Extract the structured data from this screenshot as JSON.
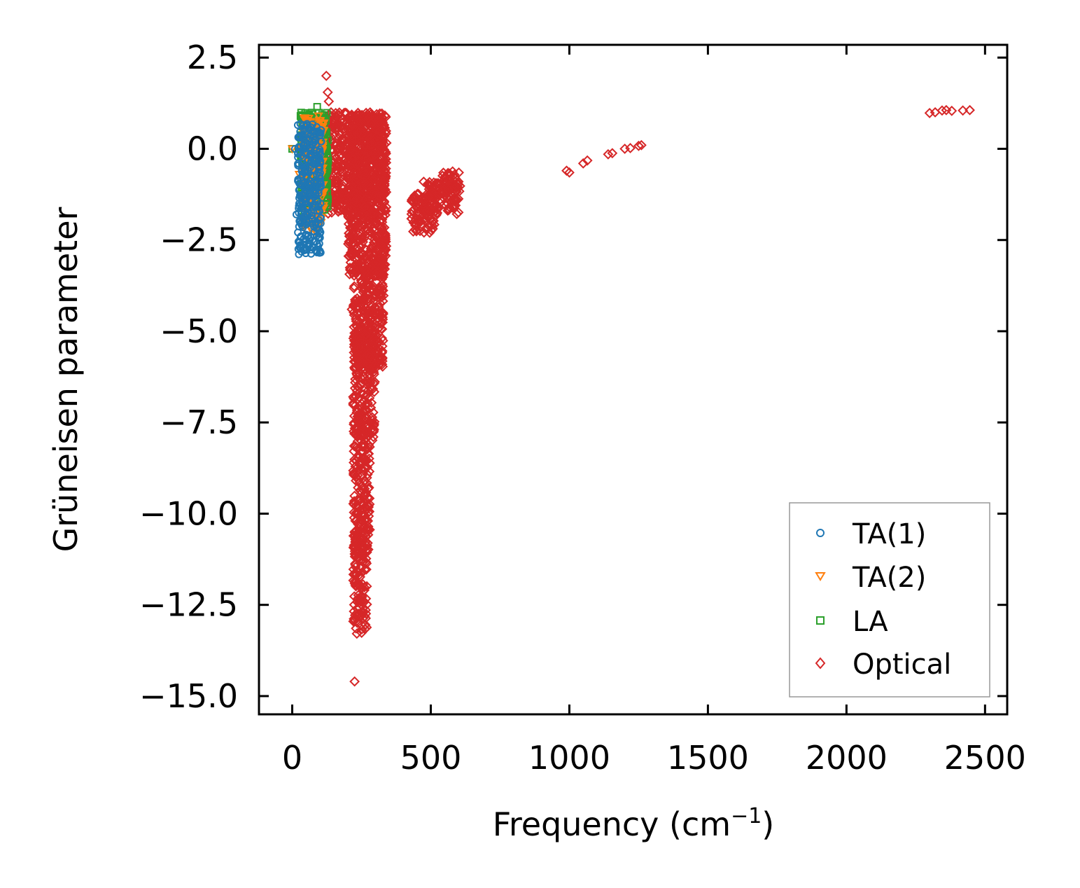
{
  "chart_data": {
    "type": "scatter",
    "title": "",
    "xlabel": "Frequency (cm",
    "xlabel_sup": "−1",
    "xlabel_tail": ")",
    "ylabel": "Grüneisen parameter",
    "xlim": [
      -120,
      2580
    ],
    "ylim": [
      -15.5,
      2.85
    ],
    "xticks": [
      0,
      500,
      1000,
      1500,
      2000,
      2500
    ],
    "xtick_labels": [
      "0",
      "500",
      "1000",
      "1500",
      "2000",
      "2500"
    ],
    "yticks": [
      2.5,
      0.0,
      -2.5,
      -5.0,
      -7.5,
      -10.0,
      -12.5,
      -15.0
    ],
    "ytick_labels": [
      "2.5",
      "0.0",
      "−2.5",
      "−5.0",
      "−7.5",
      "−10.0",
      "−12.5",
      "−15.0"
    ],
    "legend_position": "lower-right",
    "series": [
      {
        "name": "TA(1)",
        "label": "TA(1)",
        "marker": "circle",
        "color": "#1f77b4",
        "points": [
          [
            15,
            -1.8
          ],
          [
            25,
            -1.5
          ],
          [
            30,
            -0.8
          ],
          [
            35,
            -0.4
          ],
          [
            40,
            0.3
          ],
          [
            45,
            -1.2
          ],
          [
            50,
            -0.6
          ],
          [
            55,
            0.1
          ],
          [
            60,
            -1.0
          ],
          [
            65,
            -0.2
          ],
          [
            70,
            -1.4
          ],
          [
            75,
            0.5
          ],
          [
            80,
            -0.9
          ],
          [
            85,
            -0.3
          ],
          [
            88,
            0.6
          ],
          [
            90,
            -1.7
          ],
          [
            92,
            -2.2
          ],
          [
            95,
            -0.5
          ],
          [
            98,
            -2.6
          ],
          [
            100,
            -2.8
          ],
          [
            102,
            -1.9
          ],
          [
            105,
            0.2
          ],
          [
            20,
            0.65
          ],
          [
            10,
            0.0
          ],
          [
            58,
            0.4
          ]
        ],
        "bands": [
          [
            20,
            0.7,
            105,
            -2.9
          ]
        ]
      },
      {
        "name": "TA(2)",
        "label": "TA(2)",
        "marker": "triangle-down",
        "color": "#ff7f0e",
        "points": [
          [
            0,
            0.0
          ],
          [
            25,
            -0.7
          ],
          [
            35,
            0.0
          ],
          [
            45,
            0.8
          ],
          [
            55,
            0.75
          ],
          [
            65,
            -1.5
          ],
          [
            75,
            -2.0
          ],
          [
            85,
            -2.3
          ],
          [
            95,
            0.9
          ],
          [
            105,
            -1.2
          ],
          [
            110,
            0.6
          ]
        ],
        "bands": [
          [
            40,
            0.85,
            115,
            -2.2
          ]
        ]
      },
      {
        "name": "LA",
        "label": "LA",
        "marker": "square",
        "color": "#2ca02c",
        "points": [
          [
            0,
            0.0
          ],
          [
            30,
            0.9
          ],
          [
            50,
            0.85
          ],
          [
            70,
            0.95
          ],
          [
            90,
            1.15
          ],
          [
            110,
            0.8
          ],
          [
            120,
            -1.5
          ],
          [
            125,
            -0.6
          ],
          [
            100,
            0.5
          ]
        ],
        "bands": [
          [
            30,
            1.0,
            130,
            -1.7
          ]
        ]
      },
      {
        "name": "Optical",
        "label": "Optical",
        "marker": "diamond",
        "color": "#d62728",
        "points": [
          [
            123,
            2.0
          ],
          [
            128,
            1.55
          ],
          [
            132,
            1.3
          ],
          [
            140,
            1.0
          ],
          [
            210,
            -3.3
          ],
          [
            215,
            -4.4
          ],
          [
            220,
            -6.8
          ],
          [
            222,
            -8.6
          ],
          [
            225,
            -14.6
          ],
          [
            2300,
            0.98
          ],
          [
            2320,
            1.0
          ],
          [
            2345,
            1.05
          ],
          [
            2360,
            1.06
          ],
          [
            2380,
            1.04
          ],
          [
            2420,
            1.05
          ],
          [
            2445,
            1.06
          ],
          [
            990,
            -0.6
          ],
          [
            1000,
            -0.65
          ],
          [
            1050,
            -0.4
          ],
          [
            1065,
            -0.32
          ],
          [
            1140,
            -0.15
          ],
          [
            1155,
            -0.12
          ],
          [
            1200,
            0.0
          ],
          [
            1220,
            0.02
          ],
          [
            1250,
            0.08
          ],
          [
            1260,
            0.1
          ],
          [
            600,
            -0.9
          ]
        ],
        "bands": [
          [
            120,
            1.0,
            340,
            -1.8
          ],
          [
            200,
            0.9,
            340,
            -3.5
          ],
          [
            220,
            -3.0,
            330,
            -6.0
          ],
          [
            220,
            -5.0,
            300,
            -8.0
          ],
          [
            220,
            -8.0,
            280,
            -11.0
          ],
          [
            220,
            -10.5,
            270,
            -13.3
          ],
          [
            430,
            -1.2,
            520,
            -2.3
          ],
          [
            470,
            -0.9,
            600,
            -1.8
          ],
          [
            540,
            -0.6,
            610,
            -1.2
          ]
        ]
      }
    ]
  }
}
